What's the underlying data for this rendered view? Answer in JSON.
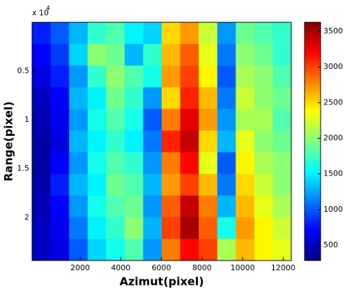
{
  "chart_data": {
    "type": "heatmap",
    "xlabel": "Azimut(pixel)",
    "ylabel": "Range(pixel)",
    "y_exponent_label": "x 10",
    "y_exponent": "4",
    "colormap": "jet",
    "xlim": [
      -370,
      12400
    ],
    "xticks": [
      2000,
      4000,
      6000,
      8000,
      10000,
      12000
    ],
    "ylim": [
      0,
      24400
    ],
    "y_reversed": true,
    "yticks": [
      {
        "value": 5000,
        "label": "0.5"
      },
      {
        "value": 10000,
        "label": "1"
      },
      {
        "value": 15000,
        "label": "1.5"
      },
      {
        "value": 20000,
        "label": "2"
      }
    ],
    "clim": [
      285,
      3627
    ],
    "cticks": [
      500,
      1000,
      1500,
      2000,
      2500,
      3000,
      3500
    ],
    "z": [
      [
        800,
        1000,
        1300,
        1700,
        1800,
        1500,
        1400,
        2500,
        2700,
        2200,
        1200,
        1900,
        1800,
        1700
      ],
      [
        700,
        900,
        1400,
        2000,
        1900,
        1300,
        1700,
        2600,
        2900,
        2300,
        1100,
        2000,
        1900,
        1700
      ],
      [
        600,
        800,
        1200,
        1700,
        2000,
        1800,
        1600,
        2700,
        3000,
        2400,
        1000,
        2100,
        2000,
        1800
      ],
      [
        500,
        700,
        1300,
        1500,
        1900,
        1700,
        1200,
        2500,
        3100,
        2600,
        1100,
        2200,
        2000,
        1900
      ],
      [
        450,
        650,
        1200,
        1600,
        1800,
        1600,
        1000,
        2800,
        3300,
        2700,
        1200,
        2100,
        2100,
        1800
      ],
      [
        400,
        600,
        1300,
        1500,
        1700,
        1500,
        1100,
        3100,
        3400,
        2500,
        1300,
        2300,
        2000,
        1900
      ],
      [
        400,
        700,
        1200,
        1600,
        1800,
        1700,
        1200,
        2800,
        3200,
        2300,
        1000,
        2400,
        2100,
        2000
      ],
      [
        420,
        800,
        1300,
        1500,
        1900,
        1800,
        1300,
        2700,
        3000,
        2600,
        1100,
        2500,
        2200,
        2000
      ],
      [
        450,
        700,
        1200,
        1600,
        1800,
        1900,
        1200,
        2900,
        3400,
        2800,
        1300,
        2600,
        2300,
        2100
      ],
      [
        500,
        650,
        1100,
        1500,
        1700,
        2000,
        1300,
        3000,
        3500,
        2900,
        1600,
        2700,
        2400,
        2200
      ],
      [
        500,
        600,
        1000,
        1400,
        1600,
        1800,
        1200,
        2800,
        3200,
        3000,
        2100,
        2600,
        2400,
        2300
      ]
    ]
  }
}
